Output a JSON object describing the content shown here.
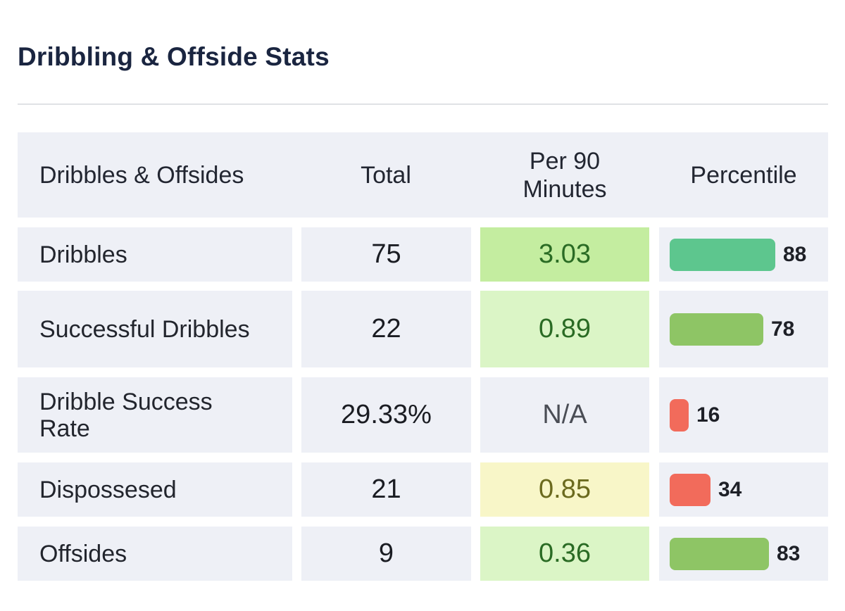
{
  "title": "Dribbling & Offside Stats",
  "table": {
    "headers": [
      "Dribbles & Offsides",
      "Total",
      "Per 90 Minutes",
      "Percentile"
    ],
    "rows": [
      {
        "label": "Dribbles",
        "total": "75",
        "per90": "3.03",
        "per90_bg": "#c4eda0",
        "per90_color": "#2a6b24",
        "percentile": "88",
        "percentile_value": 88,
        "bar_color": "#5dc68e"
      },
      {
        "label": "Successful Dribbles",
        "total": "22",
        "per90": "0.89",
        "per90_bg": "#dbf5c6",
        "per90_color": "#2a6b24",
        "percentile": "78",
        "percentile_value": 78,
        "bar_color": "#8ec565"
      },
      {
        "label": "Dribble Success Rate",
        "total": "29.33%",
        "per90": "N/A",
        "per90_bg": "#eef0f6",
        "per90_color": "#4a4d55",
        "percentile": "16",
        "percentile_value": 16,
        "bar_color": "#f26b5b"
      },
      {
        "label": "Dispossesed",
        "total": "21",
        "per90": "0.85",
        "per90_bg": "#f8f6c8",
        "per90_color": "#6b6a1e",
        "percentile": "34",
        "percentile_value": 34,
        "bar_color": "#f26b5b"
      },
      {
        "label": "Offsides",
        "total": "9",
        "per90": "0.36",
        "per90_bg": "#dbf5c6",
        "per90_color": "#2a6b24",
        "percentile": "83",
        "percentile_value": 83,
        "bar_color": "#8ec565"
      }
    ]
  }
}
